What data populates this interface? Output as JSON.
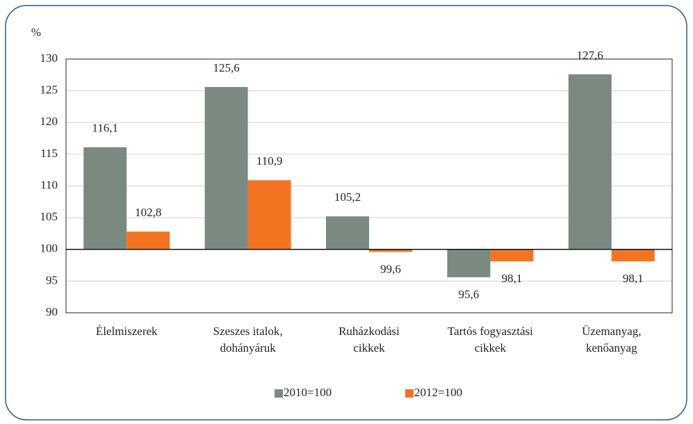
{
  "chart_data": {
    "type": "bar",
    "y_label": "%",
    "categories": [
      "Élelmiszerek",
      "Szeszes italok, dohányáruk",
      "Ruházkodási cikkek",
      "Tartós fogyasztási cikkek",
      "Üzemanyag, kenőanyag"
    ],
    "series": [
      {
        "name": "2010=100",
        "color": "#7b8a80",
        "values": [
          116.1,
          125.6,
          105.2,
          95.6,
          127.6
        ],
        "value_labels": [
          "116,1",
          "125,6",
          "105,2",
          "95,6",
          "127,6"
        ]
      },
      {
        "name": "2012=100",
        "color": "#f47321",
        "values": [
          102.8,
          110.9,
          99.6,
          98.1,
          98.1
        ],
        "value_labels": [
          "102,8",
          "110,9",
          "99,6",
          "98,1",
          "98,1"
        ]
      }
    ],
    "baseline": 100,
    "ylim": [
      90,
      130
    ],
    "yticks": [
      90,
      95,
      100,
      105,
      110,
      115,
      120,
      125,
      130
    ],
    "grid": true,
    "legend": "bottom"
  }
}
